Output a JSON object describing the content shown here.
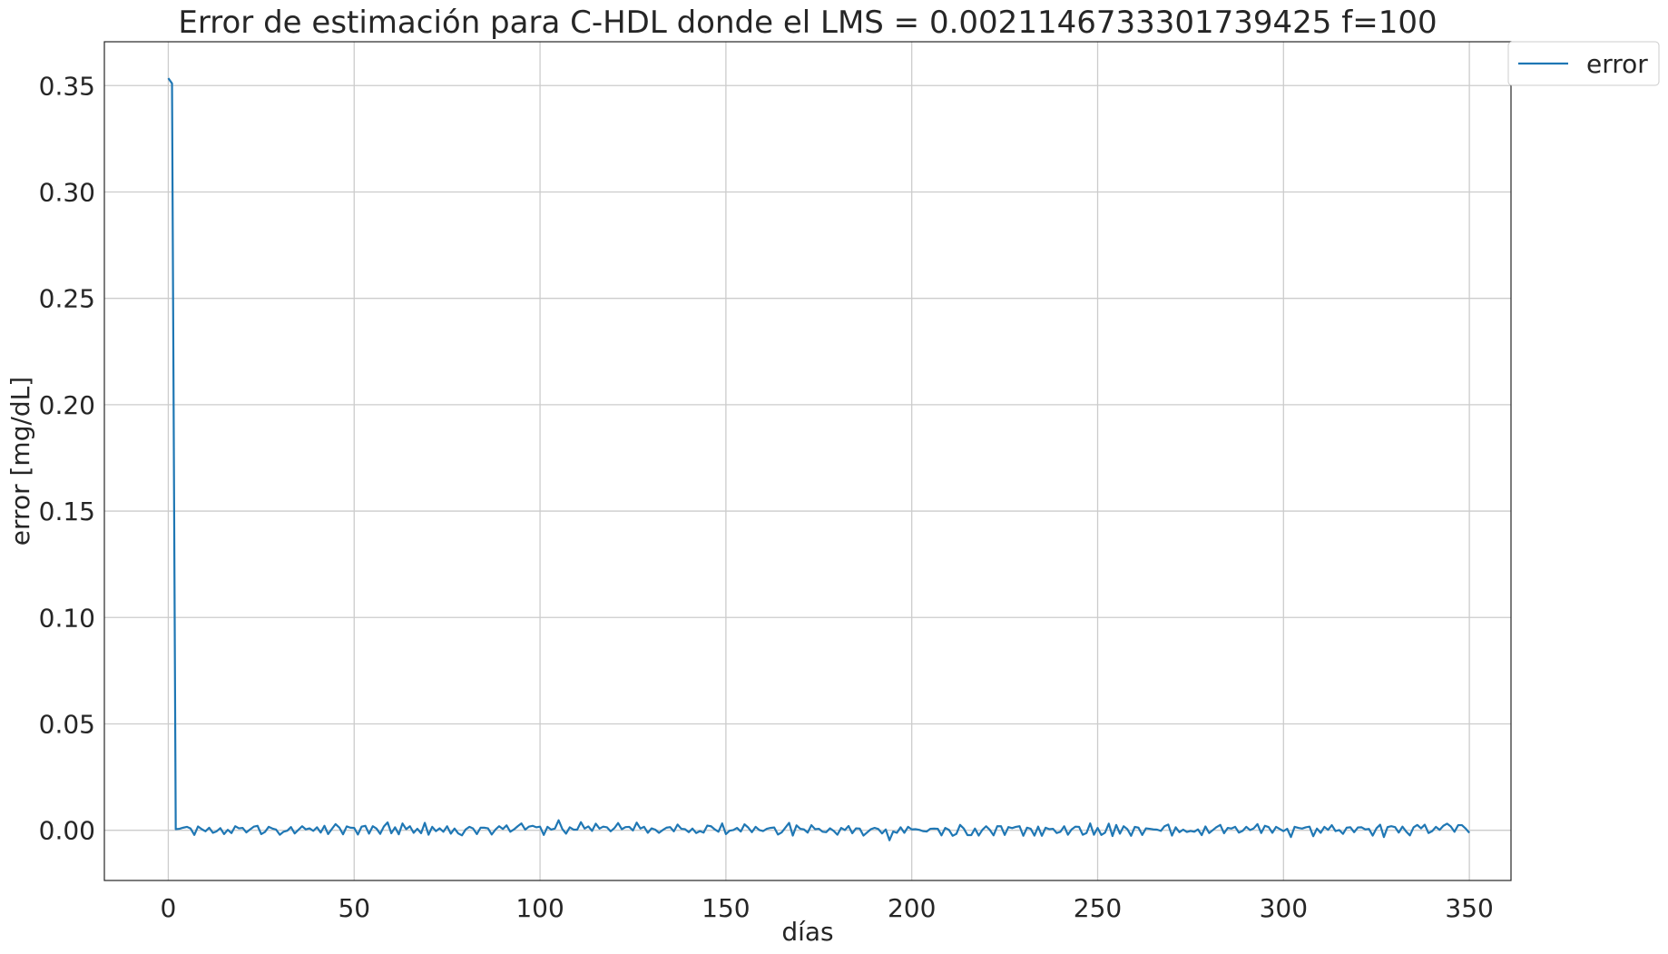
{
  "chart_data": {
    "type": "line",
    "title": "Error de estimación para C-HDL donde el LMS = 0.0021146733301739425 f=100",
    "xlabel": "días",
    "ylabel": "error  [mg/dL]",
    "xlim": [
      -17.2,
      361.2
    ],
    "ylim": [
      -0.0236,
      0.3706
    ],
    "xticks": [
      0,
      50,
      100,
      150,
      200,
      250,
      300,
      350
    ],
    "xtick_labels": [
      "0",
      "50",
      "100",
      "150",
      "200",
      "250",
      "300",
      "350"
    ],
    "yticks": [
      0.0,
      0.05,
      0.1,
      0.15,
      0.2,
      0.25,
      0.3,
      0.35
    ],
    "ytick_labels": [
      "0.00",
      "0.05",
      "0.10",
      "0.15",
      "0.20",
      "0.25",
      "0.30",
      "0.35"
    ],
    "grid": true,
    "legend_position": "outside-top-right",
    "colors": {
      "series": "#1f77b4",
      "grid": "#cccccc",
      "frame": "#262626",
      "text": "#262626"
    },
    "series": [
      {
        "name": "error",
        "x_start": 0,
        "x_step": 1,
        "values": [
          0.3535,
          0.351,
          0.0005,
          0.0007,
          0.0012,
          0.0016,
          0.0008,
          -0.0022,
          0.0018,
          0.0005,
          -0.0005,
          0.0012,
          -0.0012,
          -0.0005,
          0.001,
          -0.0018,
          0.0002,
          -0.0013,
          0.0019,
          0.0009,
          0.0011,
          -0.001,
          0.0004,
          0.0017,
          0.0021,
          -0.0018,
          -0.0008,
          0.0016,
          0.0008,
          0.0003,
          -0.0021,
          -0.0007,
          -0.0002,
          0.0015,
          -0.0015,
          0.0002,
          0.0019,
          0.0004,
          0.0009,
          -0.0003,
          0.0014,
          -0.0011,
          0.0021,
          -0.0018,
          0.0006,
          0.0029,
          0.0013,
          -0.0019,
          0.0018,
          0.0012,
          0.0011,
          -0.002,
          0.0017,
          0.0021,
          -0.0016,
          0.0019,
          0.0008,
          -0.0017,
          0.0018,
          0.0037,
          -0.0014,
          0.0014,
          -0.0019,
          0.0032,
          0.0005,
          0.0019,
          -0.0012,
          0.0007,
          -0.0014,
          0.0035,
          -0.0021,
          0.0016,
          -0.0004,
          0.0009,
          -0.0007,
          0.0019,
          -0.0016,
          0.0008,
          -0.0015,
          -0.0024,
          0.0004,
          0.0016,
          0.0008,
          -0.0018,
          0.0012,
          0.0012,
          0.0009,
          -0.002,
          0.0003,
          0.0019,
          0.0006,
          0.0023,
          -0.0007,
          0.0004,
          0.0019,
          0.0032,
          0.0003,
          0.0017,
          0.0021,
          0.0014,
          0.0017,
          -0.0022,
          0.0016,
          0.0003,
          0.0008,
          0.0047,
          0.0006,
          -0.0016,
          0.0014,
          0.0003,
          0.0003,
          0.0038,
          0.0008,
          0.0018,
          -0.0003,
          0.0031,
          0.0008,
          0.0017,
          0.0014,
          -0.0005,
          0.001,
          0.0034,
          0.0005,
          0.0015,
          0.0016,
          -0.0001,
          0.0036,
          0.0008,
          0.0016,
          -0.0012,
          0.0009,
          0.0003,
          -0.0012,
          0.0001,
          0.0012,
          0.0015,
          -0.0005,
          0.0027,
          0.0007,
          0.0005,
          -0.0009,
          0.0008,
          -0.0013,
          -0.0004,
          -0.0011,
          0.0022,
          0.0019,
          0.0004,
          -0.0007,
          0.0032,
          -0.0018,
          -0.0002,
          0.0001,
          0.0011,
          -0.0006,
          0.0028,
          0.0013,
          -0.0009,
          0.0016,
          0.0001,
          -0.0004,
          0.0007,
          0.0011,
          0.0013,
          -0.002,
          -0.001,
          0.0012,
          0.0035,
          -0.0025,
          0.0023,
          0.0007,
          0.0004,
          -0.0011,
          0.0024,
          0.0005,
          0.0007,
          -0.0007,
          -0.0009,
          0.0009,
          -0.0003,
          -0.0021,
          0.0011,
          0.0001,
          0.002,
          -0.0014,
          0.0009,
          0.0008,
          -0.0025,
          -0.001,
          0.0005,
          0.0011,
          0.0006,
          -0.0015,
          0.0004,
          -0.0047,
          -0.0006,
          -0.0012,
          0.0014,
          -0.0012,
          0.0016,
          0.0004,
          0.0005,
          0.0002,
          -0.0004,
          -0.0006,
          0.0007,
          0.0008,
          0.0007,
          -0.0024,
          0.0011,
          0.0002,
          -0.0026,
          -0.0017,
          0.0025,
          0.0008,
          -0.0023,
          -0.0023,
          0.0008,
          -0.0025,
          0.0002,
          0.0019,
          0.0002,
          -0.0024,
          0.0019,
          0.0019,
          -0.0022,
          0.0015,
          0.001,
          0.0016,
          0.0019,
          -0.0026,
          0.0012,
          0.0007,
          -0.0025,
          0.0017,
          -0.0026,
          0.0012,
          0.0005,
          0.0007,
          -0.0013,
          -0.0007,
          0.0019,
          -0.0021,
          0.0004,
          0.0017,
          0.0016,
          -0.0021,
          -0.0013,
          0.0032,
          -0.0021,
          0.0011,
          -0.0022,
          -0.0011,
          0.0031,
          -0.0027,
          0.0025,
          -0.0016,
          0.0019,
          0.0005,
          -0.0026,
          0.0016,
          0.0012,
          -0.0022,
          0.0009,
          0.0007,
          0.0004,
          0.0003,
          -0.0003,
          0.0019,
          0.0027,
          -0.0025,
          0.0014,
          -0.0009,
          0.0003,
          -0.0008,
          -0.0003,
          -0.0007,
          0.0004,
          -0.0023,
          0.0018,
          -0.0013,
          0.0001,
          0.0015,
          0.0025,
          -0.0014,
          0.0011,
          0.0008,
          0.0016,
          -0.0011,
          -0.0003,
          0.0016,
          0.0001,
          0.0009,
          0.0029,
          -0.0013,
          0.0021,
          0.0015,
          -0.0012,
          0.0016,
          0.0006,
          -0.0004,
          0.0007,
          -0.0032,
          0.0016,
          0.0011,
          0.0008,
          0.0014,
          0.0017,
          -0.0028,
          0.0008,
          -0.0012,
          0.0016,
          0.0002,
          0.0024,
          -0.0004,
          0.0001,
          -0.0017,
          0.0012,
          0.0014,
          -0.0009,
          0.0013,
          0.0014,
          0.0004,
          0.0006,
          -0.0025,
          0.0009,
          0.0026,
          -0.0032,
          0.0015,
          0.0019,
          0.0015,
          -0.0011,
          0.0017,
          -0.0006,
          -0.0024,
          0.0014,
          0.0025,
          0.0009,
          0.0026,
          -0.0013,
          -0.0004,
          0.0016,
          0.0002,
          0.0021,
          0.0031,
          0.0018,
          -0.0007,
          0.0024,
          0.0024,
          0.0008,
          -0.0012
        ]
      }
    ]
  }
}
